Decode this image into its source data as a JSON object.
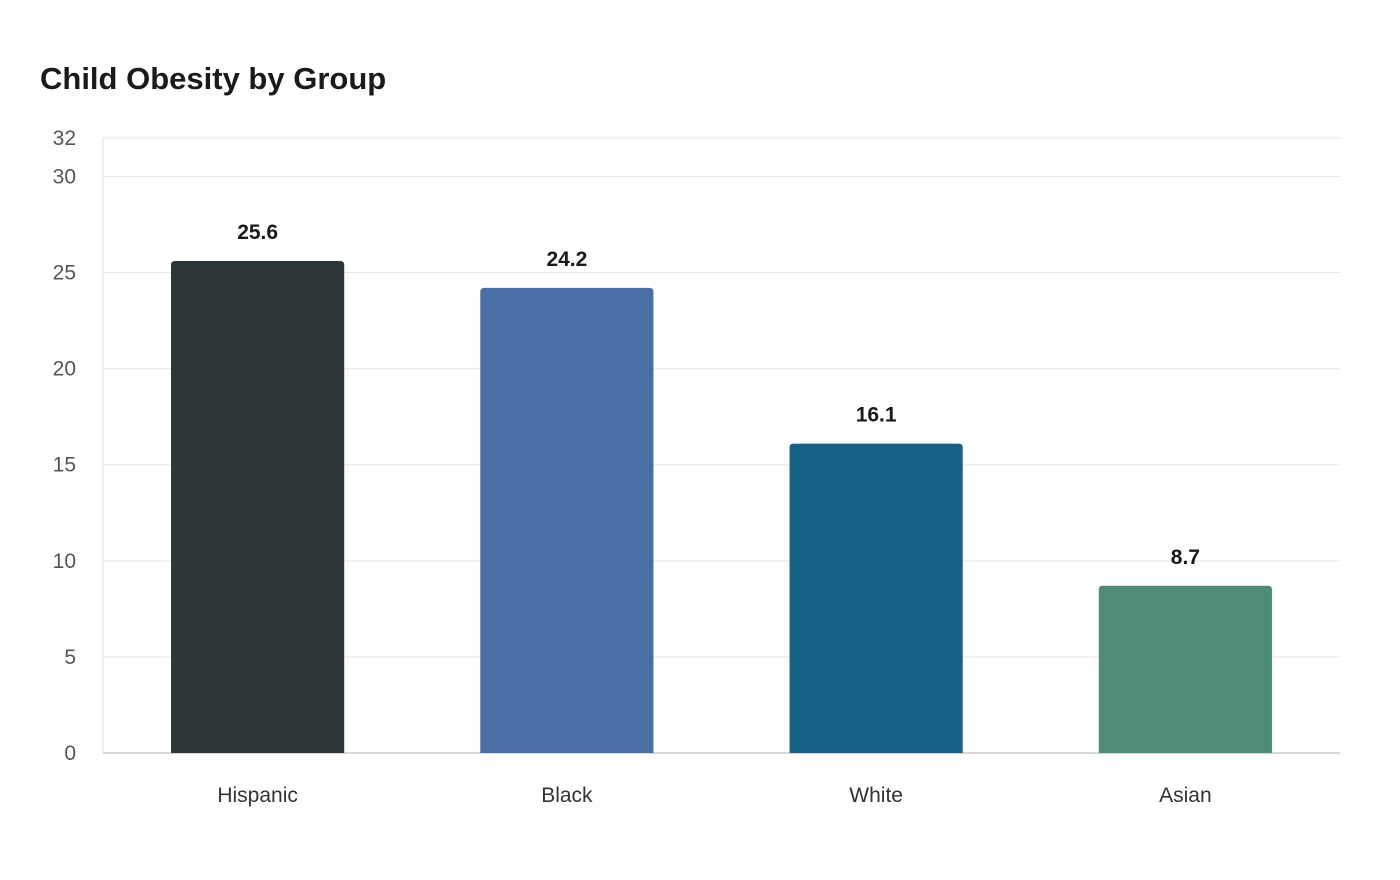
{
  "chart_data": {
    "type": "bar",
    "title": "Child Obesity by Group",
    "xlabel": "",
    "ylabel": "",
    "categories": [
      "Hispanic",
      "Black",
      "White",
      "Asian"
    ],
    "values": [
      25.6,
      24.2,
      16.1,
      8.7
    ],
    "value_labels": [
      "25.6",
      "24.2",
      "16.1",
      "8.7"
    ],
    "colors": [
      "#2d3538",
      "#4a6fa5",
      "#176087",
      "#4e8c7a"
    ],
    "ylim": [
      0,
      32
    ],
    "yticks": [
      0,
      5,
      10,
      15,
      20,
      25,
      30,
      32
    ],
    "ytick_labels": [
      "0",
      "5",
      "10",
      "15",
      "20",
      "25",
      "30",
      "32"
    ],
    "grid": true,
    "legend": "none"
  }
}
